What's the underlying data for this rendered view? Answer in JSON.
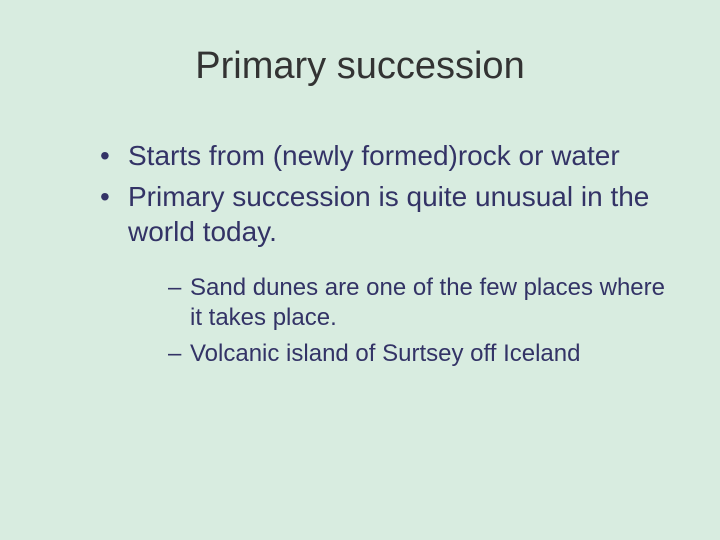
{
  "background_color": "#d8ece0",
  "text_color": "#333366",
  "title_color": "#333333",
  "title_font": "Arial",
  "body_font": "Verdana",
  "title_fontsize": 38,
  "bullet_fontsize": 28,
  "sub_bullet_fontsize": 24,
  "title": "Primary succession",
  "bullets": [
    {
      "text": "Starts from (newly formed)rock or water"
    },
    {
      "text": "Primary succession is quite unusual in the world today."
    }
  ],
  "sub_bullets": [
    {
      "text": "Sand dunes are one of the few places where it takes place."
    },
    {
      "text": "Volcanic island of Surtsey off Iceland"
    }
  ]
}
